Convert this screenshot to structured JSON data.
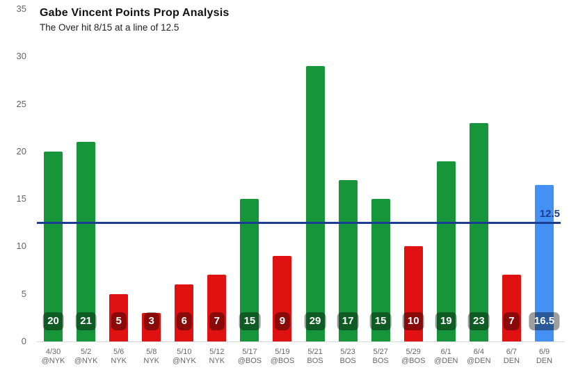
{
  "chart_data": {
    "type": "bar",
    "title": "Gabe Vincent Points Prop Analysis",
    "subtitle": "The Over hit 8/15 at a line of 12.5",
    "ylim": [
      0,
      35
    ],
    "yticks": [
      0,
      5,
      10,
      15,
      20,
      25,
      30,
      35
    ],
    "grid": false,
    "legend": "none",
    "prop_line": {
      "value": 12.5,
      "label": "12.5",
      "color": "#1b3d91"
    },
    "colors": {
      "over": "#17953a",
      "under": "#df1111",
      "projection": "#4490f4",
      "axis_text": "#666666",
      "baseline": "#d9d9d9",
      "badge_text": "#ffffff"
    },
    "bars": [
      {
        "date": "4/30",
        "opponent": "@NYK",
        "value": 20,
        "label": "20",
        "result": "over"
      },
      {
        "date": "5/2",
        "opponent": "@NYK",
        "value": 21,
        "label": "21",
        "result": "over"
      },
      {
        "date": "5/6",
        "opponent": "NYK",
        "value": 5,
        "label": "5",
        "result": "under"
      },
      {
        "date": "5/8",
        "opponent": "NYK",
        "value": 3,
        "label": "3",
        "result": "under"
      },
      {
        "date": "5/10",
        "opponent": "@NYK",
        "value": 6,
        "label": "6",
        "result": "under"
      },
      {
        "date": "5/12",
        "opponent": "NYK",
        "value": 7,
        "label": "7",
        "result": "under"
      },
      {
        "date": "5/17",
        "opponent": "@BOS",
        "value": 15,
        "label": "15",
        "result": "over"
      },
      {
        "date": "5/19",
        "opponent": "@BOS",
        "value": 9,
        "label": "9",
        "result": "under"
      },
      {
        "date": "5/21",
        "opponent": "BOS",
        "value": 29,
        "label": "29",
        "result": "over"
      },
      {
        "date": "5/23",
        "opponent": "BOS",
        "value": 17,
        "label": "17",
        "result": "over"
      },
      {
        "date": "5/27",
        "opponent": "BOS",
        "value": 15,
        "label": "15",
        "result": "over"
      },
      {
        "date": "5/29",
        "opponent": "@BOS",
        "value": 10,
        "label": "10",
        "result": "under"
      },
      {
        "date": "6/1",
        "opponent": "@DEN",
        "value": 19,
        "label": "19",
        "result": "over"
      },
      {
        "date": "6/4",
        "opponent": "@DEN",
        "value": 23,
        "label": "23",
        "result": "over"
      },
      {
        "date": "6/7",
        "opponent": "DEN",
        "value": 7,
        "label": "7",
        "result": "under"
      },
      {
        "date": "6/9",
        "opponent": "DEN",
        "value": 16.5,
        "label": "16.5",
        "result": "projection"
      }
    ]
  }
}
